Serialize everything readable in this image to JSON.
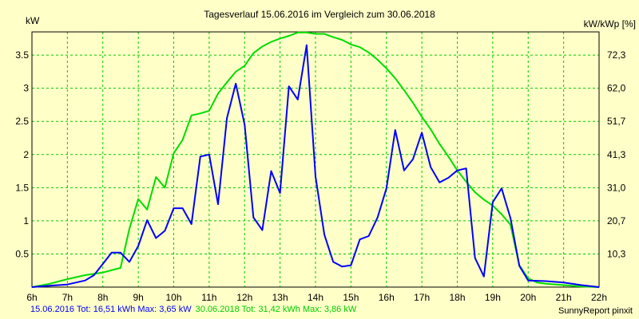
{
  "chart_data": {
    "type": "line",
    "title": "Tagesverlauf 15.06.2016 im Vergleich zum 30.06.2018",
    "ylabel": "kW",
    "ylabel_right": "kW/kWp [%]",
    "x_ticks": [
      "6h",
      "7h",
      "8h",
      "9h",
      "10h",
      "11h",
      "12h",
      "13h",
      "14h",
      "15h",
      "16h",
      "17h",
      "18h",
      "19h",
      "20h",
      "21h",
      "22h"
    ],
    "xlim": [
      6,
      22
    ],
    "ylim": [
      0,
      3.85
    ],
    "y_ticks": [
      0.5,
      1,
      1.5,
      2,
      2.5,
      3,
      3.5
    ],
    "y_tick_labels": [
      "0.5",
      "1",
      "1.5",
      "2",
      "2.5",
      "3",
      "3.5"
    ],
    "y2_ticks": [
      0.5,
      1,
      1.5,
      2,
      2.5,
      3,
      3.5
    ],
    "y2_tick_labels": [
      "10,3",
      "20,7",
      "31,0",
      "41,3",
      "51,7",
      "62,0",
      "72,3"
    ],
    "grid": true,
    "series": [
      {
        "name": "15.06.2016",
        "color": "#0000ff",
        "x": [
          6.0,
          6.5,
          7.0,
          7.25,
          7.5,
          7.75,
          8.0,
          8.25,
          8.5,
          8.75,
          9.0,
          9.25,
          9.5,
          9.75,
          10.0,
          10.25,
          10.5,
          10.75,
          11.0,
          11.25,
          11.5,
          11.75,
          12.0,
          12.25,
          12.5,
          12.75,
          13.0,
          13.25,
          13.5,
          13.75,
          14.0,
          14.25,
          14.5,
          14.75,
          15.0,
          15.25,
          15.5,
          15.75,
          16.0,
          16.25,
          16.5,
          16.75,
          17.0,
          17.25,
          17.5,
          17.75,
          18.0,
          18.25,
          18.5,
          18.75,
          19.0,
          19.25,
          19.5,
          19.75,
          20.0,
          20.5,
          21.0,
          21.5,
          22.0
        ],
        "values": [
          0.0,
          0.02,
          0.04,
          0.07,
          0.1,
          0.18,
          0.35,
          0.52,
          0.52,
          0.38,
          0.62,
          1.01,
          0.74,
          0.85,
          1.19,
          1.19,
          0.95,
          1.97,
          2.0,
          1.25,
          2.55,
          3.07,
          2.45,
          1.05,
          0.86,
          1.75,
          1.42,
          3.03,
          2.83,
          3.65,
          1.67,
          0.79,
          0.38,
          0.31,
          0.33,
          0.72,
          0.77,
          1.05,
          1.49,
          2.37,
          1.76,
          1.93,
          2.33,
          1.81,
          1.58,
          1.65,
          1.76,
          1.79,
          0.44,
          0.16,
          1.28,
          1.49,
          1.04,
          0.32,
          0.1,
          0.09,
          0.07,
          0.03,
          0.0
        ]
      },
      {
        "name": "30.06.2018",
        "color": "#00dd00",
        "x": [
          6.0,
          6.5,
          7.0,
          7.5,
          8.0,
          8.5,
          8.75,
          9.0,
          9.25,
          9.5,
          9.75,
          10.0,
          10.25,
          10.5,
          10.75,
          11.0,
          11.25,
          11.5,
          11.75,
          12.0,
          12.25,
          12.5,
          12.75,
          13.0,
          13.25,
          13.5,
          13.75,
          14.0,
          14.25,
          14.5,
          14.75,
          15.0,
          15.25,
          15.5,
          15.75,
          16.0,
          16.25,
          16.5,
          16.75,
          17.0,
          17.25,
          17.5,
          17.75,
          18.0,
          18.25,
          18.5,
          18.75,
          19.0,
          19.25,
          19.5,
          19.75,
          20.0,
          20.25,
          20.5,
          21.0,
          21.5,
          22.0
        ],
        "values": [
          0.0,
          0.05,
          0.12,
          0.18,
          0.22,
          0.29,
          0.88,
          1.33,
          1.17,
          1.66,
          1.5,
          2.02,
          2.22,
          2.59,
          2.62,
          2.66,
          2.92,
          3.09,
          3.25,
          3.34,
          3.53,
          3.63,
          3.7,
          3.75,
          3.79,
          3.84,
          3.84,
          3.82,
          3.82,
          3.77,
          3.73,
          3.66,
          3.62,
          3.54,
          3.43,
          3.3,
          3.15,
          2.97,
          2.78,
          2.57,
          2.38,
          2.16,
          1.97,
          1.76,
          1.59,
          1.43,
          1.32,
          1.23,
          1.1,
          0.94,
          0.33,
          0.13,
          0.07,
          0.05,
          0.03,
          0.01,
          0.0
        ]
      }
    ]
  },
  "legend": {
    "series1": "15.06.2016 Tot: 16,51 kWh Max: 3,65 kW",
    "series2": "30.06.2018 Tot: 31,42 kWh Max: 3,86 kW"
  },
  "credit": "SunnyReport pinxit",
  "colors": {
    "background": "#ffffc8",
    "grid": "#00cc00",
    "axis": "#000000"
  }
}
